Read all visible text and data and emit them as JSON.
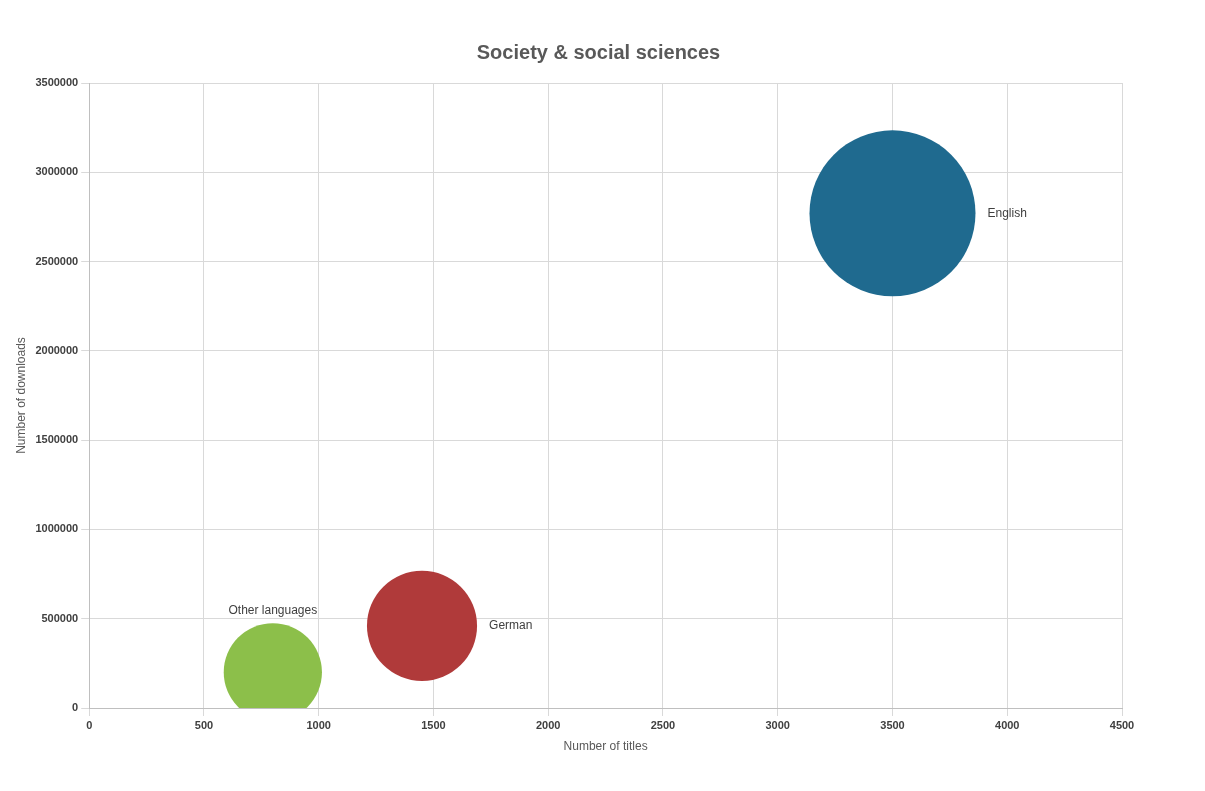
{
  "chart_data": {
    "type": "bubble",
    "title": "Society & social sciences",
    "xlabel": "Number of titles",
    "ylabel": "Number of downloads",
    "series": [
      {
        "name": "English",
        "color": "#1f6a8f",
        "x": [
          3500
        ],
        "values": [
          2770000
        ],
        "sizes": [
          1
        ]
      },
      {
        "name": "German",
        "color": "#b03a3a",
        "x": [
          1450
        ],
        "values": [
          460000
        ],
        "sizes": [
          0.44
        ]
      },
      {
        "name": "Other languages",
        "color": "#8cbf4a",
        "x": [
          800
        ],
        "values": [
          200000
        ],
        "sizes": [
          0.35
        ]
      }
    ],
    "xlim": [
      0,
      4500
    ],
    "xticks": [
      0,
      500,
      1000,
      1500,
      2000,
      2500,
      3000,
      3500,
      4000,
      4500
    ],
    "ylim": [
      0,
      3500000
    ],
    "yticks": [
      0,
      500000,
      1000000,
      1500000,
      2000000,
      2500000,
      3000000,
      3500000
    ],
    "grid": true,
    "legend": false
  }
}
